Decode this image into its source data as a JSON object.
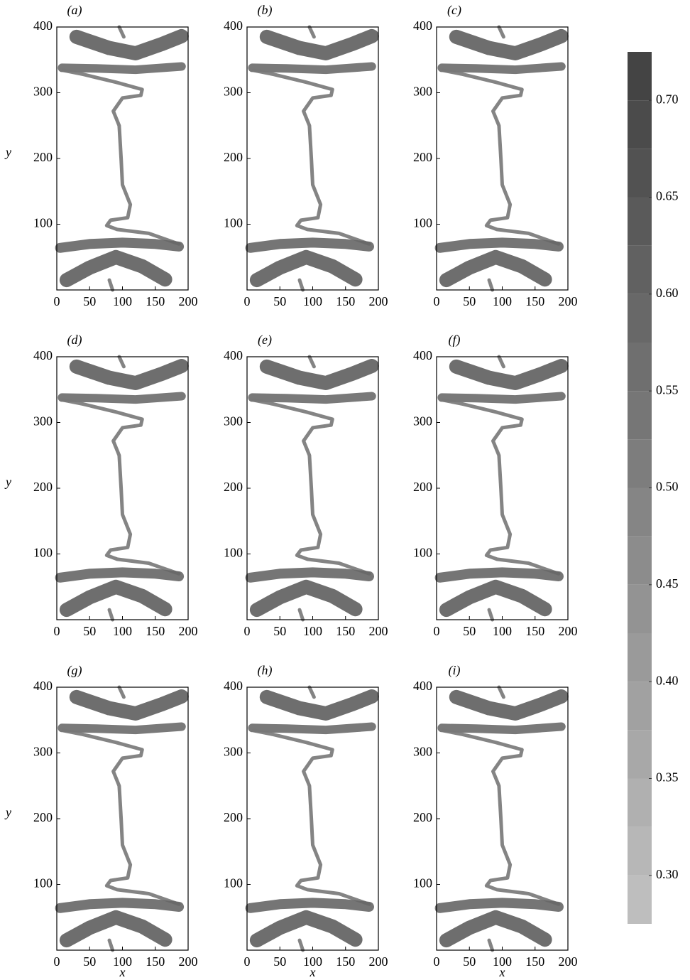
{
  "chart_data": [
    {
      "type": "contour",
      "title": "(a)",
      "ylabel": "y",
      "xlim": [
        0,
        200
      ],
      "ylim": [
        0,
        400
      ],
      "xticks": [
        0,
        50,
        100,
        150,
        200
      ],
      "yticks": [
        100,
        200,
        300,
        400
      ]
    },
    {
      "type": "contour",
      "title": "(b)",
      "xlim": [
        0,
        200
      ],
      "ylim": [
        0,
        400
      ],
      "xticks": [
        0,
        50,
        100,
        150,
        200
      ],
      "yticks": [
        100,
        200,
        300,
        400
      ]
    },
    {
      "type": "contour",
      "title": "(c)",
      "xlim": [
        0,
        200
      ],
      "ylim": [
        0,
        400
      ],
      "xticks": [
        0,
        50,
        100,
        150,
        200
      ],
      "yticks": [
        100,
        200,
        300,
        400
      ]
    },
    {
      "type": "contour",
      "title": "(d)",
      "ylabel": "y",
      "xlim": [
        0,
        200
      ],
      "ylim": [
        0,
        400
      ],
      "xticks": [
        0,
        50,
        100,
        150,
        200
      ],
      "yticks": [
        100,
        200,
        300,
        400
      ]
    },
    {
      "type": "contour",
      "title": "(e)",
      "xlim": [
        0,
        200
      ],
      "ylim": [
        0,
        400
      ],
      "xticks": [
        0,
        50,
        100,
        150,
        200
      ],
      "yticks": [
        100,
        200,
        300,
        400
      ]
    },
    {
      "type": "contour",
      "title": "(f)",
      "xlim": [
        0,
        200
      ],
      "ylim": [
        0,
        400
      ],
      "xticks": [
        0,
        50,
        100,
        150,
        200
      ],
      "yticks": [
        100,
        200,
        300,
        400
      ]
    },
    {
      "type": "contour",
      "title": "(g)",
      "ylabel": "y",
      "xlabel": "x",
      "xlim": [
        0,
        200
      ],
      "ylim": [
        0,
        400
      ],
      "xticks": [
        0,
        50,
        100,
        150,
        200
      ],
      "yticks": [
        100,
        200,
        300,
        400
      ]
    },
    {
      "type": "contour",
      "title": "(h)",
      "xlabel": "x",
      "xlim": [
        0,
        200
      ],
      "ylim": [
        0,
        400
      ],
      "xticks": [
        0,
        50,
        100,
        150,
        200
      ],
      "yticks": [
        100,
        200,
        300,
        400
      ]
    },
    {
      "type": "contour",
      "title": "(i)",
      "xlabel": "x",
      "xlim": [
        0,
        200
      ],
      "ylim": [
        0,
        400
      ],
      "xticks": [
        0,
        50,
        100,
        150,
        200
      ],
      "yticks": [
        100,
        200,
        300,
        400
      ]
    },
    {
      "type": "colorbar",
      "ylim": [
        0.275,
        0.725
      ],
      "levels": [
        0.275,
        0.3,
        0.325,
        0.35,
        0.375,
        0.4,
        0.425,
        0.45,
        0.475,
        0.5,
        0.525,
        0.55,
        0.575,
        0.6,
        0.625,
        0.65,
        0.675,
        0.7,
        0.725
      ],
      "yticks": [
        {
          "value": 0.3,
          "label": "0.30"
        },
        {
          "value": 0.35,
          "label": "0.35"
        },
        {
          "value": 0.4,
          "label": "0.40"
        },
        {
          "value": 0.45,
          "label": "0.45"
        },
        {
          "value": 0.5,
          "label": "0.50"
        },
        {
          "value": 0.55,
          "label": "0.55"
        },
        {
          "value": 0.6,
          "label": "0.60"
        },
        {
          "value": 0.65,
          "label": "0.65"
        },
        {
          "value": 0.7,
          "label": "0.70"
        }
      ]
    }
  ]
}
